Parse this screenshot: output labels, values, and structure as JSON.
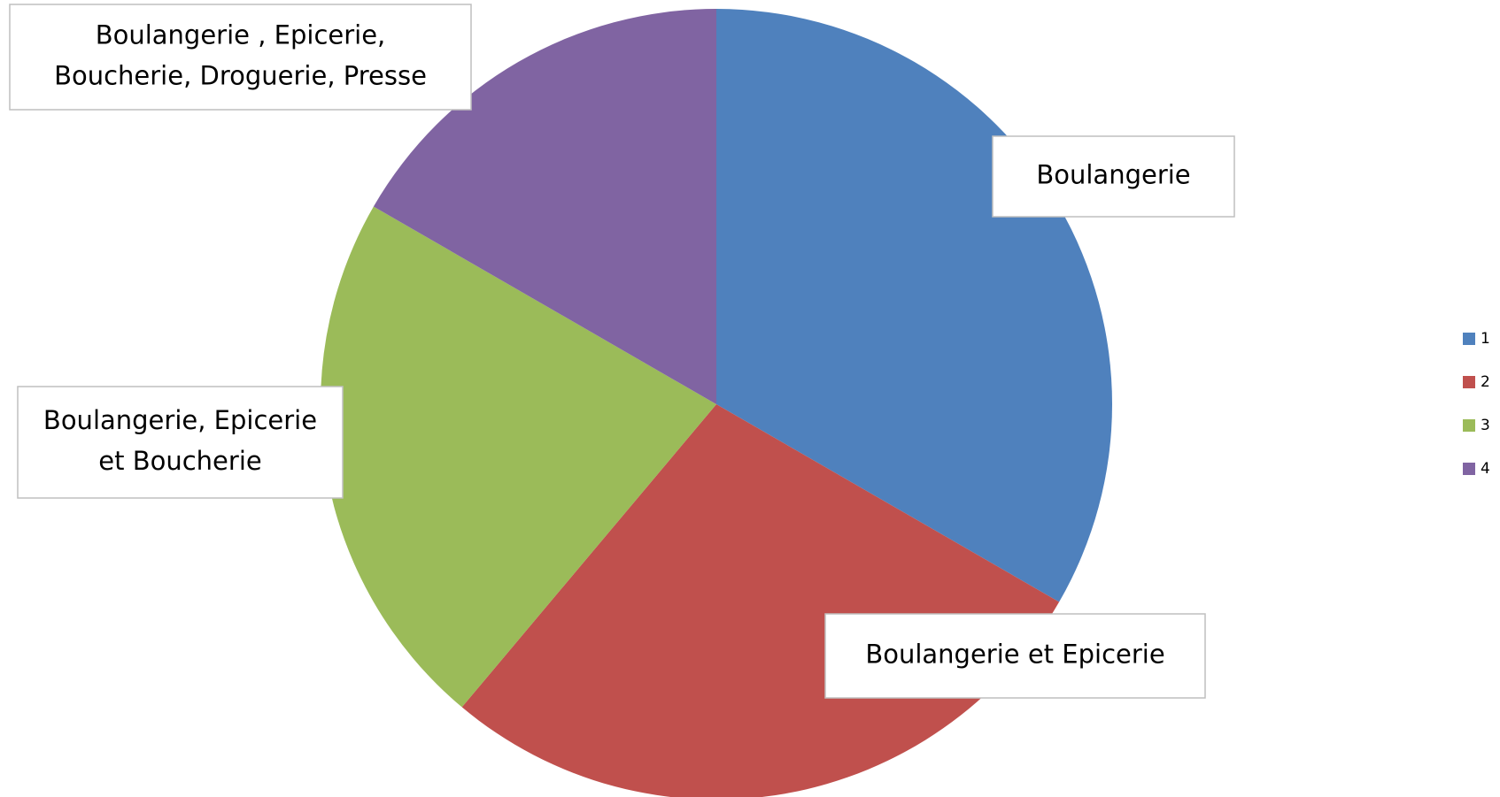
{
  "chart_data": {
    "type": "pie",
    "categories": [
      "1",
      "2",
      "3",
      "4"
    ],
    "values": [
      6,
      5,
      4,
      3
    ],
    "colors": [
      "#4f81bd",
      "#c0504d",
      "#9bbb59",
      "#8064a2"
    ],
    "labels": [
      [
        "Boulangerie"
      ],
      [
        "Boulangerie et Epicerie"
      ],
      [
        "Boulangerie, Epicerie",
        "et Boucherie"
      ],
      [
        "Boulangerie , Epicerie,",
        "Boucherie, Droguerie, Presse"
      ]
    ],
    "legend": "right"
  }
}
